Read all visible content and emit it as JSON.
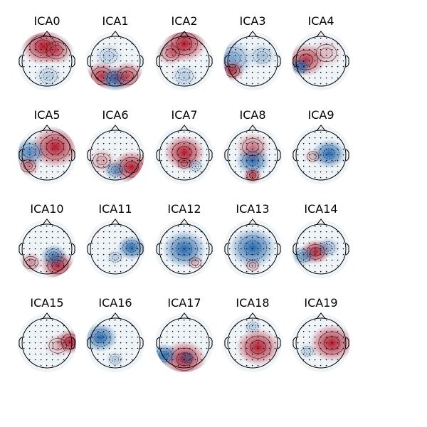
{
  "colors": {
    "positive": "#b2182b",
    "negative": "#2166ac",
    "neutral": "#f7f7f7",
    "outline": "#000000"
  },
  "components": [
    {
      "label": "ICA0",
      "blobs": [
        {
          "c": "pos",
          "s": 1.0
        },
        {
          "c": "pos",
          "s": 0.7
        },
        {
          "c": "neg",
          "s": 0.3
        }
      ]
    },
    {
      "label": "ICA1",
      "blobs": [
        {
          "c": "pos",
          "s": 0.9
        },
        {
          "c": "neg",
          "s": 1.0
        },
        {
          "c": "pos",
          "s": 0.8
        },
        {
          "c": "neg",
          "s": 0.3
        }
      ]
    },
    {
      "label": "ICA2",
      "blobs": [
        {
          "c": "pos",
          "s": 1.0
        },
        {
          "c": "pos",
          "s": 0.6
        },
        {
          "c": "neg",
          "s": 0.3
        }
      ]
    },
    {
      "label": "ICA3",
      "blobs": [
        {
          "c": "neg",
          "s": 0.6
        },
        {
          "c": "pos",
          "s": 0.9
        },
        {
          "c": "neg",
          "s": 0.4
        }
      ]
    },
    {
      "label": "ICA4",
      "blobs": [
        {
          "c": "pos",
          "s": 0.9
        },
        {
          "c": "neg",
          "s": 0.9
        },
        {
          "c": "pos",
          "s": 0.3
        }
      ]
    },
    {
      "label": "ICA5",
      "blobs": [
        {
          "c": "pos",
          "s": 1.0
        },
        {
          "c": "neg",
          "s": 0.8
        },
        {
          "c": "pos",
          "s": 0.6
        }
      ]
    },
    {
      "label": "ICA6",
      "blobs": [
        {
          "c": "pos",
          "s": 1.0
        },
        {
          "c": "neg",
          "s": 0.7
        },
        {
          "c": "pos",
          "s": 0.4
        }
      ]
    },
    {
      "label": "ICA7",
      "blobs": [
        {
          "c": "pos",
          "s": 1.0
        },
        {
          "c": "pos",
          "s": 0.5
        },
        {
          "c": "neg",
          "s": 0.3
        }
      ]
    },
    {
      "label": "ICA8",
      "blobs": [
        {
          "c": "neg",
          "s": 1.0
        },
        {
          "c": "pos",
          "s": 0.6
        },
        {
          "c": "pos",
          "s": 0.9
        }
      ]
    },
    {
      "label": "ICA9",
      "blobs": [
        {
          "c": "neg",
          "s": 1.0
        },
        {
          "c": "pos",
          "s": 0.3
        }
      ]
    },
    {
      "label": "ICA10",
      "blobs": [
        {
          "c": "pos",
          "s": 1.0
        },
        {
          "c": "neg",
          "s": 0.8
        },
        {
          "c": "pos",
          "s": 0.5
        }
      ]
    },
    {
      "label": "ICA11",
      "blobs": [
        {
          "c": "neg",
          "s": 1.0
        },
        {
          "c": "neg",
          "s": 0.3
        }
      ]
    },
    {
      "label": "ICA12",
      "blobs": [
        {
          "c": "neg",
          "s": 1.0
        },
        {
          "c": "pos",
          "s": 0.3
        }
      ]
    },
    {
      "label": "ICA13",
      "blobs": [
        {
          "c": "neg",
          "s": 1.0
        },
        {
          "c": "pos",
          "s": 0.3
        }
      ]
    },
    {
      "label": "ICA14",
      "blobs": [
        {
          "c": "pos",
          "s": 1.0
        },
        {
          "c": "neg",
          "s": 0.7
        },
        {
          "c": "neg",
          "s": 0.5
        }
      ]
    },
    {
      "label": "ICA15",
      "blobs": [
        {
          "c": "pos",
          "s": 1.0
        },
        {
          "c": "pos",
          "s": 0.3
        }
      ]
    },
    {
      "label": "ICA16",
      "blobs": [
        {
          "c": "neg",
          "s": 1.0
        },
        {
          "c": "neg",
          "s": 0.3
        }
      ]
    },
    {
      "label": "ICA17",
      "blobs": [
        {
          "c": "pos",
          "s": 1.0
        },
        {
          "c": "neg",
          "s": 1.0
        },
        {
          "c": "neg",
          "s": 0.6
        }
      ]
    },
    {
      "label": "ICA18",
      "blobs": [
        {
          "c": "pos",
          "s": 1.0
        },
        {
          "c": "neg",
          "s": 0.3
        }
      ]
    },
    {
      "label": "ICA19",
      "blobs": [
        {
          "c": "pos",
          "s": 1.0
        },
        {
          "c": "neg",
          "s": 0.3
        }
      ]
    }
  ]
}
